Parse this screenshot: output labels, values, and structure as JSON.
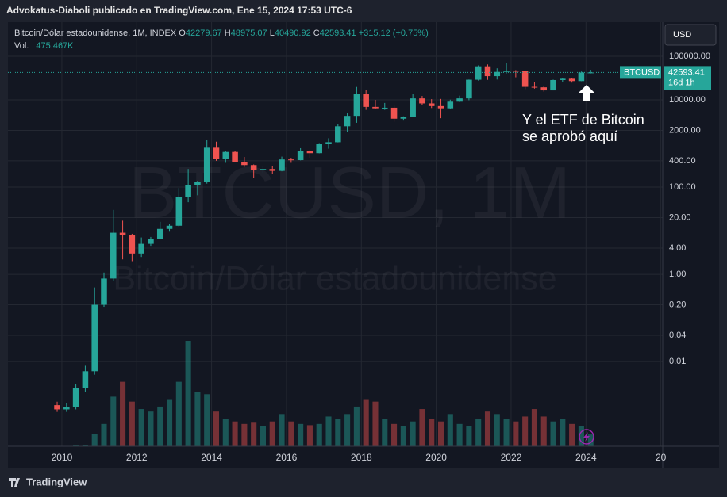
{
  "page": {
    "byline": "Advokatus-Diaboli publicado en TradingView.com, Ene 15, 2024 17:53 UTC-6",
    "brand": "TradingView",
    "currency_button": "USD"
  },
  "chart_data": {
    "type": "candlestick",
    "header": {
      "symbol": "Bitcoin/Dólar estadounidense, 1M, INDEX",
      "open_label": "O",
      "open": "42279.67",
      "high_label": "H",
      "high": "48975.07",
      "low_label": "L",
      "low": "40490.92",
      "close_label": "C",
      "close": "42593.41",
      "change": "+315.12 (+0.75%)",
      "volume_label": "Vol.",
      "volume": "475.467K"
    },
    "watermark": {
      "ticker": "BTCUSD, 1M",
      "name": "Bitcoin/Dólar estadounidense"
    },
    "annotation": [
      "Y el ETF de Bitcoin",
      "se aprobó aquí"
    ],
    "price_label": {
      "symbol": "BTCUSD",
      "price": "42593.41",
      "countdown": "16d 1h"
    },
    "log_scale": true,
    "grid": true,
    "up_color": "#26a69a",
    "down_color": "#ef5350",
    "x": [
      2009.75,
      2010,
      2010.25,
      2010.5,
      2010.75,
      2011,
      2011.25,
      2011.5,
      2011.75,
      2012,
      2012.25,
      2012.5,
      2012.75,
      2013,
      2013.25,
      2013.5,
      2013.75,
      2014,
      2014.25,
      2014.5,
      2014.75,
      2015,
      2015.25,
      2015.5,
      2015.75,
      2016,
      2016.25,
      2016.5,
      2016.75,
      2017,
      2017.25,
      2017.5,
      2017.75,
      2018,
      2018.25,
      2018.5,
      2018.75,
      2019,
      2019.25,
      2019.5,
      2019.75,
      2020,
      2020.25,
      2020.5,
      2020.75,
      2021,
      2021.25,
      2021.5,
      2021.75,
      2022,
      2022.25,
      2022.5,
      2022.75,
      2023,
      2023.25,
      2023.5,
      2023.75,
      2024
    ],
    "open": [
      0.001,
      0.0008,
      0.0009,
      0.0025,
      0.006,
      0.2,
      0.8,
      9,
      8,
      3,
      5,
      6.5,
      11,
      13,
      60,
      110,
      130,
      800,
      450,
      640,
      380,
      320,
      245,
      260,
      235,
      430,
      415,
      670,
      600,
      960,
      1070,
      2480,
      4300,
      13800,
      6900,
      6400,
      6600,
      3700,
      4100,
      10800,
      8300,
      7200,
      6400,
      9100,
      10800,
      29000,
      58800,
      35000,
      43800,
      46300,
      45500,
      19900,
      19400,
      16500,
      28500,
      30500,
      27000,
      42279.67
    ],
    "high": [
      0.0012,
      0.0011,
      0.003,
      0.008,
      0.5,
      1.1,
      30,
      17,
      8.5,
      7,
      7.2,
      16,
      14,
      95,
      260,
      140,
      1200,
      1100,
      680,
      660,
      490,
      330,
      300,
      310,
      500,
      470,
      780,
      710,
      980,
      1320,
      2800,
      4900,
      19800,
      17200,
      10000,
      8500,
      7400,
      4200,
      13800,
      12300,
      10400,
      10500,
      10100,
      12500,
      29300,
      61800,
      64900,
      52900,
      69000,
      48200,
      47400,
      25200,
      21000,
      29200,
      31000,
      31800,
      44700,
      48975.07
    ],
    "low": [
      0.0007,
      0.0007,
      0.0008,
      0.002,
      0.005,
      0.18,
      0.7,
      2.2,
      2,
      2.5,
      4.5,
      6.3,
      9.5,
      12.5,
      45,
      65,
      120,
      400,
      360,
      370,
      290,
      165,
      210,
      200,
      230,
      360,
      410,
      470,
      595,
      760,
      1060,
      1800,
      2980,
      5900,
      6100,
      5900,
      3150,
      3350,
      4050,
      7700,
      6500,
      3800,
      6200,
      8900,
      9800,
      27700,
      28800,
      29300,
      40600,
      32900,
      17600,
      18100,
      15500,
      16500,
      25800,
      24900,
      26900,
      40490.92
    ],
    "close": [
      0.0008,
      0.0009,
      0.0025,
      0.006,
      0.2,
      0.8,
      9,
      8,
      3,
      5,
      6.5,
      11,
      13,
      60,
      110,
      130,
      800,
      450,
      640,
      380,
      320,
      245,
      260,
      235,
      430,
      415,
      670,
      600,
      960,
      1070,
      2480,
      4300,
      13800,
      6900,
      6400,
      6600,
      3700,
      4100,
      10800,
      8300,
      7200,
      6400,
      9100,
      10800,
      29000,
      58800,
      35000,
      43800,
      46300,
      45500,
      19900,
      19400,
      16500,
      28500,
      30500,
      27000,
      42300,
      42593.41
    ],
    "volume": [
      0,
      0,
      30,
      60,
      500,
      900,
      2000,
      2600,
      1800,
      1500,
      1400,
      1600,
      1900,
      2600,
      4250,
      2200,
      2100,
      1400,
      1100,
      1000,
      900,
      950,
      800,
      1000,
      1300,
      1000,
      900,
      850,
      900,
      1200,
      1100,
      1300,
      1600,
      1900,
      1800,
      1100,
      900,
      800,
      1000,
      1500,
      1100,
      1000,
      1300,
      900,
      800,
      1100,
      1400,
      1300,
      1100,
      1000,
      1200,
      1500,
      1200,
      1000,
      1100,
      900,
      800,
      475.467
    ],
    "xlim": [
      2008.56,
      2026.05
    ],
    "xticks": [
      2010,
      2012,
      2014,
      2016,
      2018,
      2020,
      2022,
      2024,
      {
        "value": 2026,
        "label": "20"
      }
    ],
    "ylim": [
      0.000114,
      556000
    ],
    "yticks": [
      {
        "value": 0.01,
        "label": "0.01"
      },
      {
        "value": 0.04,
        "label": "0.04"
      },
      {
        "value": 0.2,
        "label": "0.20"
      },
      {
        "value": 1,
        "label": "1.00"
      },
      {
        "value": 4,
        "label": "4.00"
      },
      {
        "value": 20,
        "label": "20.00"
      },
      {
        "value": 100,
        "label": "100.00"
      },
      {
        "value": 400,
        "label": "400.00"
      },
      {
        "value": 2000,
        "label": "2000.00"
      },
      {
        "value": 10000,
        "label": "10000.00"
      },
      {
        "value": 100000,
        "label": "100000.00"
      }
    ]
  }
}
